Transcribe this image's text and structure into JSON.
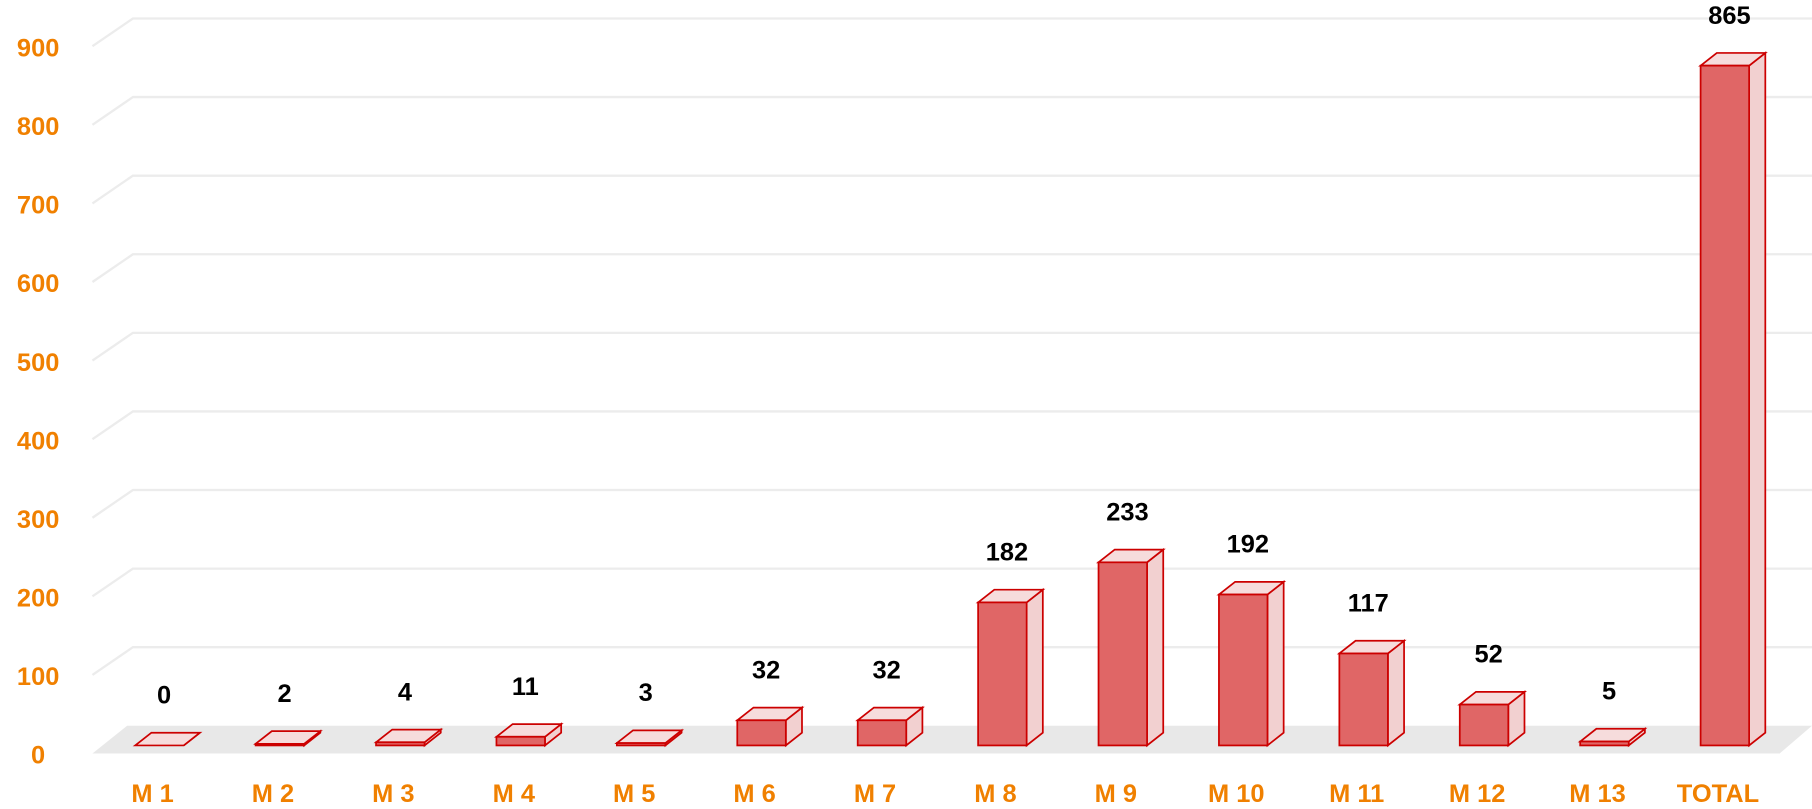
{
  "chart_data": {
    "type": "bar3d",
    "categories": [
      "M 1",
      "M 2",
      "M 3",
      "M 4",
      "M 5",
      "M 6",
      "M 7",
      "M 8",
      "M 9",
      "M 10",
      "M 11",
      "M 12",
      "M 13",
      "TOTAL"
    ],
    "values": [
      0,
      2,
      4,
      11,
      3,
      32,
      32,
      182,
      233,
      192,
      117,
      52,
      5,
      865
    ],
    "color": "#e06666",
    "edge_color": "#cc0000",
    "ylim": [
      0,
      900
    ],
    "yticks": [
      0,
      100,
      200,
      300,
      400,
      500,
      600,
      700,
      800,
      900
    ],
    "grid": true
  }
}
